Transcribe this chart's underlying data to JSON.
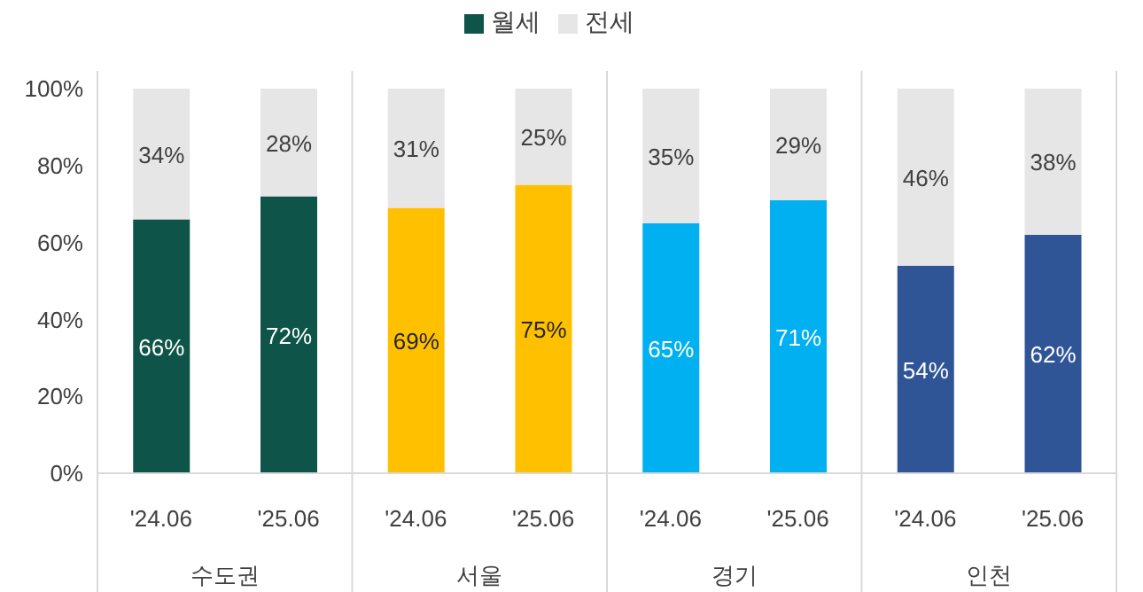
{
  "chart_data": {
    "type": "bar",
    "stacked": true,
    "legend": "top",
    "categories": [
      "'24.06",
      "'25.06",
      "'24.06",
      "'25.06",
      "'24.06",
      "'25.06",
      "'24.06",
      "'25.06"
    ],
    "series": [
      {
        "name": "월세",
        "color": "#0e5448",
        "colors": [
          "#0e5448",
          "#0e5448",
          "#ffc000",
          "#ffc000",
          "#00b0f0",
          "#00b0f0",
          "#2f5597",
          "#2f5597"
        ],
        "values": [
          66,
          72,
          69,
          75,
          65,
          71,
          54,
          62
        ],
        "value_labels": [
          "66%",
          "72%",
          "69%",
          "75%",
          "65%",
          "71%",
          "54%",
          "62%"
        ]
      },
      {
        "name": "전세",
        "color": "#e7e6e6",
        "values": [
          34,
          28,
          31,
          25,
          35,
          29,
          46,
          38
        ],
        "value_labels": [
          "34%",
          "28%",
          "31%",
          "25%",
          "35%",
          "29%",
          "46%",
          "38%"
        ]
      }
    ],
    "ylim": [
      0,
      100
    ],
    "yticks": [
      {
        "value": 0,
        "label": "0%"
      },
      {
        "value": 20,
        "label": "20%"
      },
      {
        "value": 40,
        "label": "40%"
      },
      {
        "value": 60,
        "label": "60%"
      },
      {
        "value": 80,
        "label": "80%"
      },
      {
        "value": 100,
        "label": "100%"
      }
    ],
    "annotations": [
      "수도권",
      "서울",
      "경기",
      "인천"
    ],
    "grid": false
  }
}
